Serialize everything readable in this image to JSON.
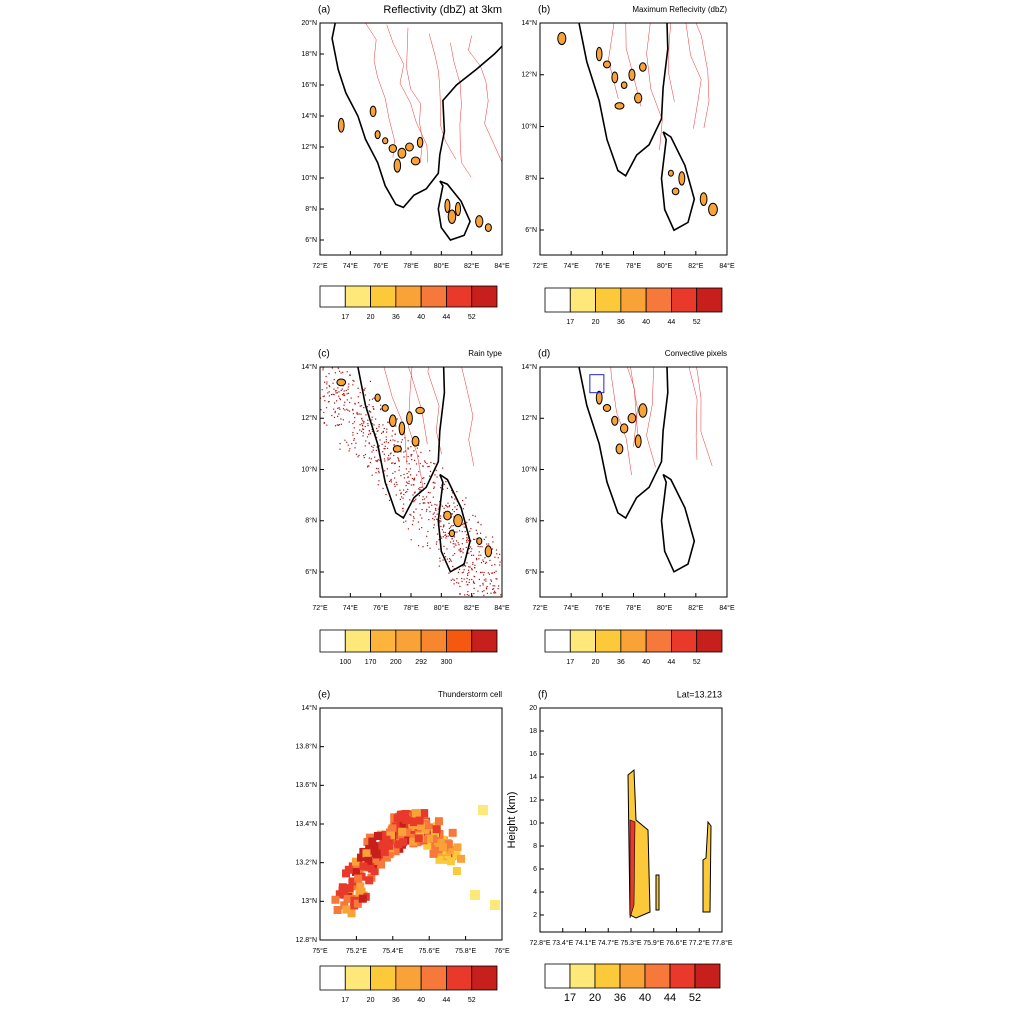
{
  "panels": [
    {
      "label": "(a)",
      "title": "Reflectivity (dbZ) at 3km",
      "x_tick_labels": [
        "72°E",
        "74°E",
        "76°E",
        "78°E",
        "80°E",
        "82°E",
        "84°E"
      ],
      "y_tick_labels": [
        "20°N",
        "18°N",
        "16°N",
        "14°N",
        "12°N",
        "10°N",
        "8°N",
        "6°N"
      ],
      "colorbar_labels": [
        "17",
        "20",
        "36",
        "40",
        "44",
        "52"
      ],
      "colorbar_colors": [
        "#ffffff",
        "#fee87a",
        "#fcc93a",
        "#f9a238",
        "#f6783a",
        "#e8392a",
        "#c61f1c"
      ]
    },
    {
      "label": "(b)",
      "title": "Maximum Reflecivity (dbZ)",
      "x_tick_labels": [
        "72°E",
        "74°E",
        "76°E",
        "78°E",
        "80°E",
        "82°E",
        "84°E"
      ],
      "y_tick_labels": [
        "14°N",
        "12°N",
        "10°N",
        "8°N",
        "6°N"
      ],
      "colorbar_labels": [
        "17",
        "20",
        "36",
        "40",
        "44",
        "52"
      ],
      "colorbar_colors": [
        "#ffffff",
        "#fee87a",
        "#fcc93a",
        "#f9a238",
        "#f6783a",
        "#e8392a",
        "#c61f1c"
      ]
    },
    {
      "label": "(c)",
      "title": "Rain type",
      "x_tick_labels": [
        "72°E",
        "74°E",
        "76°E",
        "78°E",
        "80°E",
        "82°E",
        "84°E"
      ],
      "y_tick_labels": [
        "14°N",
        "12°N",
        "10°N",
        "8°N",
        "6°N"
      ],
      "colorbar_labels": [
        "100",
        "170",
        "200",
        "292",
        "300"
      ],
      "colorbar_colors": [
        "#ffffff",
        "#fee87a",
        "#fdb43a",
        "#f9a238",
        "#f7862e",
        "#f5590f",
        "#c61f1c"
      ]
    },
    {
      "label": "(d)",
      "title": "Convective pixels",
      "x_tick_labels": [
        "72°E",
        "74°E",
        "76°E",
        "78°E",
        "80°E",
        "82°E",
        "84°E"
      ],
      "y_tick_labels": [
        "14°N",
        "12°N",
        "10°N",
        "8°N",
        "6°N"
      ],
      "colorbar_labels": [
        "17",
        "20",
        "36",
        "40",
        "44",
        "52"
      ],
      "colorbar_colors": [
        "#ffffff",
        "#fee87a",
        "#fcc93a",
        "#f9a238",
        "#f6783a",
        "#e8392a",
        "#c61f1c"
      ]
    },
    {
      "label": "(e)",
      "title": "Thunderstorm cell",
      "x_tick_labels": [
        "75°E",
        "75.2°E",
        "75.4°E",
        "75.6°E",
        "75.8°E",
        "76°E"
      ],
      "y_tick_labels": [
        "14°N",
        "13.8°N",
        "13.6°N",
        "13.4°N",
        "13.2°N",
        "13°N",
        "12.8°N"
      ],
      "colorbar_labels": [
        "17",
        "20",
        "36",
        "40",
        "44",
        "52"
      ],
      "colorbar_colors": [
        "#ffffff",
        "#fee87a",
        "#fcc93a",
        "#f9a238",
        "#f6783a",
        "#e8392a",
        "#c61f1c"
      ]
    },
    {
      "label": "(f)",
      "title": "Lat=13.213",
      "y_axis_label": "Height (km)",
      "x_tick_labels": [
        "72.8°E",
        "73.4°E",
        "74.1°E",
        "74.7°E",
        "75.3°E",
        "75.9°E",
        "76.6°E",
        "77.2°E",
        "77.8°E"
      ],
      "y_tick_labels": [
        "20",
        "18",
        "16",
        "14",
        "12",
        "10",
        "8",
        "6",
        "4",
        "2"
      ],
      "colorbar_labels": [
        "17",
        "20",
        "36",
        "40",
        "44",
        "52"
      ],
      "colorbar_colors": [
        "#ffffff",
        "#fee87a",
        "#fcc93a",
        "#f9a238",
        "#f6783a",
        "#e8392a",
        "#c61f1c"
      ]
    }
  ]
}
